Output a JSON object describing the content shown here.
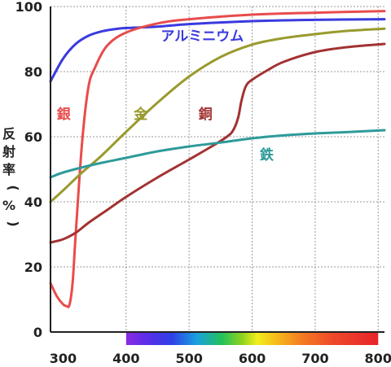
{
  "chart_data": {
    "type": "line",
    "title": "",
    "xlabel": "",
    "ylabel": "反射率（%）",
    "ylabel_chars": [
      "反",
      "射",
      "率",
      "（",
      "%",
      "）"
    ],
    "xlim": [
      280,
      810
    ],
    "ylim": [
      0,
      100
    ],
    "x_ticks": [
      300,
      400,
      500,
      600,
      700,
      800
    ],
    "y_ticks": [
      0,
      20,
      40,
      60,
      80,
      100
    ],
    "grid": true,
    "visible_spectrum_band": [
      400,
      800
    ],
    "series": [
      {
        "name": "アルミニウム",
        "color": "#3a3adf",
        "label_at": [
          455,
          91
        ],
        "x": [
          280,
          300,
          320,
          340,
          360,
          380,
          400,
          450,
          500,
          600,
          700,
          810
        ],
        "y": [
          77,
          84,
          88.5,
          91,
          92.3,
          93.0,
          93.4,
          93.8,
          94.6,
          95.5,
          95.9,
          96.1
        ]
      },
      {
        "name": "銀",
        "color": "#e84c4c",
        "label_at": [
          290,
          67
        ],
        "x": [
          280,
          290,
          300,
          305,
          310,
          315,
          320,
          330,
          340,
          350,
          370,
          400,
          450,
          500,
          600,
          700,
          810
        ],
        "y": [
          15,
          11,
          8.5,
          8.0,
          8.3,
          15,
          30,
          58,
          75,
          81,
          88,
          92,
          94.8,
          96.1,
          97.5,
          98.1,
          98.6
        ]
      },
      {
        "name": "金",
        "color": "#9a9a2e",
        "label_at": [
          412,
          67
        ],
        "x": [
          280,
          300,
          330,
          360,
          400,
          450,
          500,
          550,
          600,
          650,
          700,
          750,
          810
        ],
        "y": [
          40,
          43.5,
          49,
          54,
          61.5,
          70.5,
          78.5,
          84.5,
          88.3,
          90.3,
          91.5,
          92.5,
          93.2
        ]
      },
      {
        "name": "銅",
        "color": "#a23232",
        "label_at": [
          515,
          67
        ],
        "x": [
          280,
          300,
          320,
          340,
          370,
          400,
          450,
          500,
          540,
          560,
          570,
          578,
          583,
          590,
          600,
          625,
          650,
          700,
          750,
          810
        ],
        "y": [
          27.5,
          28.5,
          30.5,
          33.5,
          37.5,
          41.5,
          47.5,
          53,
          57.5,
          60,
          62,
          66,
          71,
          75.5,
          77.5,
          80.5,
          83,
          86,
          87.5,
          88.5
        ]
      },
      {
        "name": "鉄",
        "color": "#2e9a9a",
        "label_at": [
          612,
          54.5
        ],
        "x": [
          280,
          300,
          350,
          400,
          450,
          500,
          550,
          600,
          650,
          700,
          750,
          810
        ],
        "y": [
          47.5,
          49,
          51.5,
          53.5,
          55.5,
          57,
          58.2,
          59.5,
          60.4,
          61,
          61.4,
          62
        ]
      }
    ]
  }
}
